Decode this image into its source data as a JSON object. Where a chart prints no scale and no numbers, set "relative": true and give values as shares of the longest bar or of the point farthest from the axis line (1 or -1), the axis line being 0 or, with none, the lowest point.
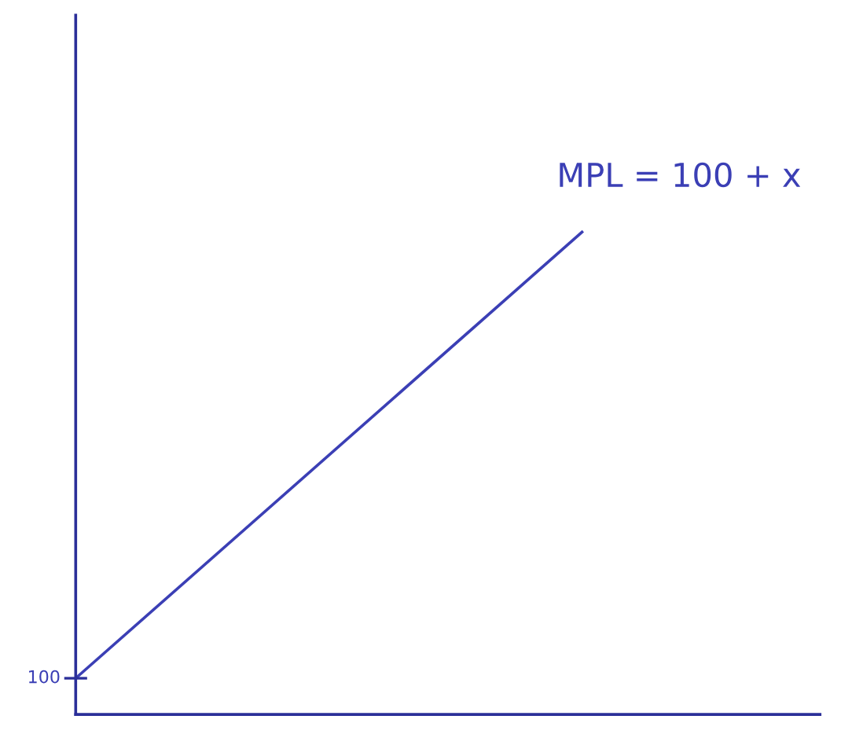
{
  "chart_data": {
    "type": "line",
    "relative": true,
    "categories": [
      null,
      null
    ],
    "series": [
      {
        "color": "#3b3fb5",
        "values": [
          0.075,
          1
        ]
      }
    ],
    "annotations": [
      "100",
      "MPL = 100 + x"
    ],
    "legend": false
  }
}
